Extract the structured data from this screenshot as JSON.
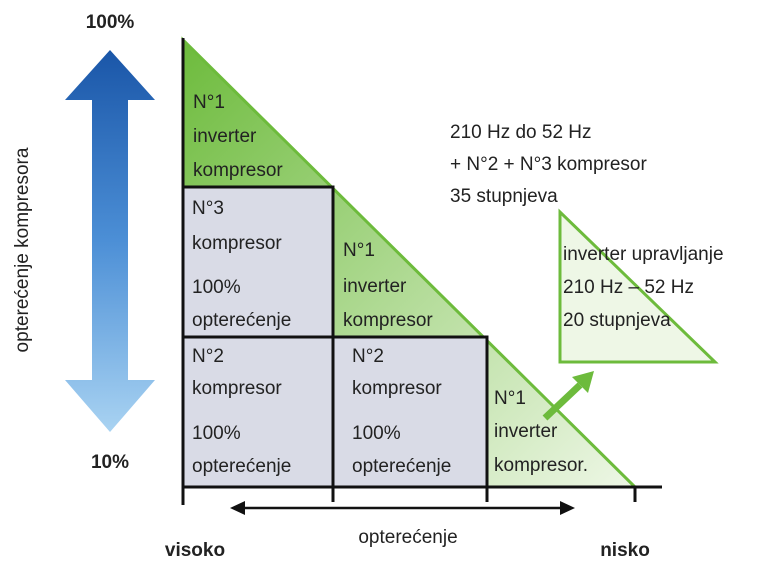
{
  "axis": {
    "top": "100%",
    "bottom": "10%",
    "vertical_label": "opterećenje kompresora",
    "horizontal_label": "opterećenje",
    "left": "visoko",
    "right": "nisko"
  },
  "cells": [
    {
      "lines": [
        "N°1",
        "inverter",
        "kompresor"
      ]
    },
    {
      "lines": [
        "N°3",
        "kompresor",
        "100%",
        "opterećenje"
      ]
    },
    {
      "lines": [
        "N°1",
        "inverter",
        "kompresor"
      ]
    },
    {
      "lines": [
        "N°2",
        "kompresor",
        "100%",
        "opterećenje"
      ]
    },
    {
      "lines": [
        "N°2",
        "kompresor",
        "100%",
        "opterećenje"
      ]
    },
    {
      "lines": [
        "N°1",
        "inverter",
        "kompresor."
      ]
    }
  ],
  "info": [
    "210 Hz do 52 Hz",
    "+ N°2 + N°3 kompresor",
    "35 stupnjeva"
  ],
  "legend": [
    "inverter upravljanje",
    "210 Hz – 52 Hz",
    "20 stupnjeva"
  ]
}
